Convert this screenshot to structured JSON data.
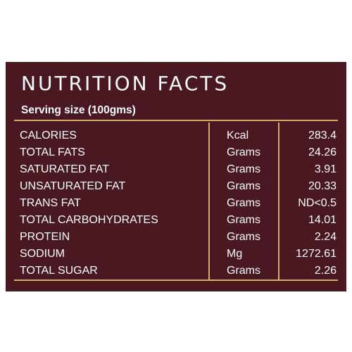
{
  "panel": {
    "title": "NUTRITION FACTS",
    "serving_size": "Serving size (100gms)",
    "rows": [
      {
        "nutrient": "CALORIES",
        "unit": "Kcal",
        "value": "283.4"
      },
      {
        "nutrient": "TOTAL FATS",
        "unit": "Grams",
        "value": "24.26"
      },
      {
        "nutrient": "SATURATED FAT",
        "unit": "Grams",
        "value": "3.91"
      },
      {
        "nutrient": "UNSATURATED FAT",
        "unit": "Grams",
        "value": "20.33"
      },
      {
        "nutrient": "TRANS FAT",
        "unit": "Grams",
        "value": "ND<0.5"
      },
      {
        "nutrient": "TOTAL CARBOHYDRATES",
        "unit": "Grams",
        "value": "14.01"
      },
      {
        "nutrient": "PROTEIN",
        "unit": "Grams",
        "value": "2.24"
      },
      {
        "nutrient": "SODIUM",
        "unit": "Mg",
        "value": "1272.61"
      },
      {
        "nutrient": "TOTAL SUGAR",
        "unit": "Grams",
        "value": "2.26"
      }
    ]
  },
  "colors": {
    "background": "#4a1820",
    "accent_line": "#d0b06f",
    "text": "#ffffff"
  }
}
